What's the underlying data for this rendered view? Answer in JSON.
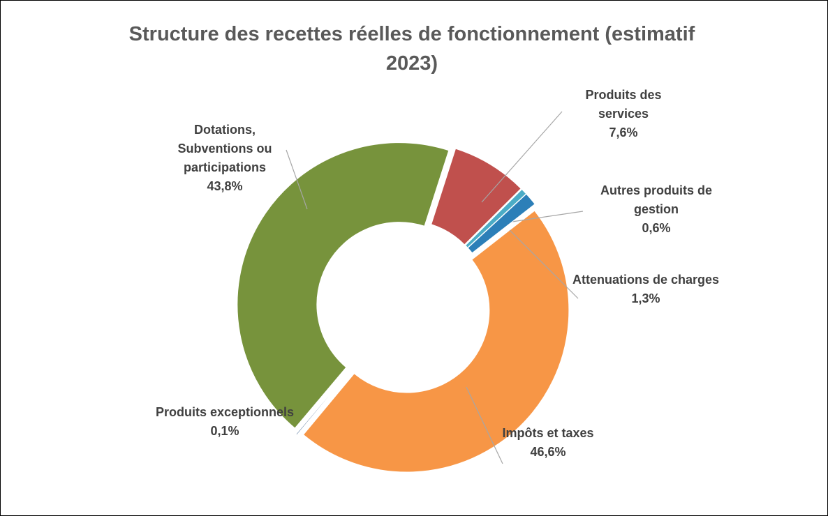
{
  "chart_data": {
    "type": "donut",
    "title": "Structure des recettes réelles de fonctionnement (estimatif 2023)",
    "categories": [
      "Impôts et taxes",
      "Produits exceptionnels",
      "Dotations, Subventions ou participations",
      "Produits des services",
      "Autres produits de gestion",
      "Attenuations de charges"
    ],
    "values": [
      46.6,
      0.1,
      43.8,
      7.6,
      0.6,
      1.3
    ],
    "value_labels": [
      "46,6%",
      "0,1%",
      "43,8%",
      "7,6%",
      "0,6%",
      "1,3%"
    ],
    "colors": [
      "#f79646",
      "#1f497d",
      "#77933c",
      "#c0504d",
      "#4bacc6",
      "#2c7fb8"
    ]
  }
}
